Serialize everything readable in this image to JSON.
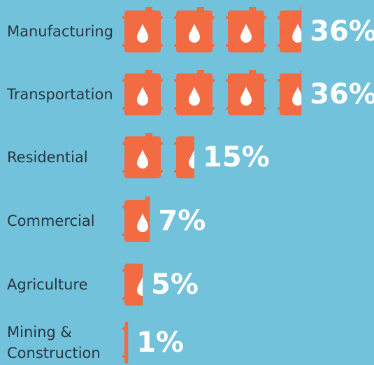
{
  "chart_data": {
    "type": "pictograph",
    "categories": [
      "Manufacturing",
      "Transportation",
      "Residential",
      "Commercial",
      "Agriculture",
      "Mining & Construction"
    ],
    "values": [
      36,
      36,
      15,
      7,
      5,
      1
    ],
    "value_labels": [
      "36%",
      "36%",
      "15%",
      "7%",
      "5%",
      "1%"
    ],
    "color": "#f26b43"
  }
}
